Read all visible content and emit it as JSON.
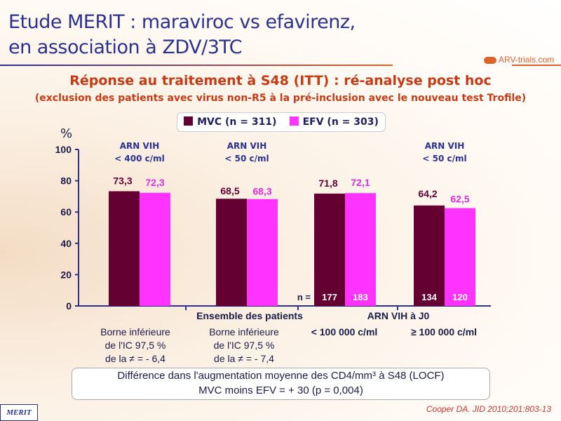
{
  "title_line1": "Etude MERIT : maraviroc vs efavirenz,",
  "title_line2": "en association à ZDV/3TC",
  "logo_text": "ARV-trials.com",
  "subtitle": "Réponse au traitement à S48 (ITT) : ré-analyse post hoc",
  "subtitle2": "(exclusion des patients avec virus non-R5 à la pré-inclusion avec le nouveau test Trofile)",
  "colors": {
    "mvc": "#650033",
    "efv": "#ff33ff"
  },
  "chart_data": {
    "type": "bar",
    "ylabel": "%",
    "ylim": [
      0,
      100
    ],
    "yticks": [
      "0",
      "20",
      "40",
      "60",
      "80",
      "100"
    ],
    "legend": "top-center",
    "categories": [
      "ARN VIH < 400 c/ml",
      "ARN VIH < 50 c/ml",
      "< 100 000 c/ml",
      "≥ 100 000 c/ml"
    ],
    "group_headers": [
      [
        "ARN VIH",
        "< 400 c/ml"
      ],
      [
        "ARN VIH",
        "< 50 c/ml"
      ],
      [
        "",
        ""
      ],
      [
        "ARN VIH",
        "< 50 c/ml"
      ]
    ],
    "series": [
      {
        "name": "MVC (n = 311)",
        "values": [
          73.3,
          68.5,
          71.8,
          64.2
        ],
        "labels": [
          "73,3",
          "68,5",
          "71,8",
          "64,2"
        ],
        "n": [
          "",
          "",
          "177",
          "134"
        ]
      },
      {
        "name": "EFV (n = 303)",
        "values": [
          72.3,
          68.3,
          72.1,
          62.5
        ],
        "labels": [
          "72,3",
          "68,3",
          "72,1",
          "62,5"
        ],
        "n": [
          "",
          "",
          "183",
          "120"
        ]
      }
    ],
    "n_label": "n =",
    "xgroup_labels": [
      "Ensemble des patients",
      "ARN VIH à J0"
    ],
    "strata_labels": [
      "< 100 000 c/ml",
      "≥ 100 000 c/ml"
    ]
  },
  "notes": {
    "ci1": [
      "Borne inférieure",
      "de l'IC 97,5 %",
      "de la ≠ = - 6,4"
    ],
    "ci2": [
      "Borne inférieure",
      "de l'IC 97,5 %",
      "de la ≠ = - 7,4"
    ]
  },
  "cd4_box": {
    "line1": "Différence dans l'augmentation moyenne des CD4/mm³ à S48 (LOCF)",
    "line2": "MVC moins EFV = + 30 (p = 0,004)"
  },
  "citation": "Cooper DA. JID 2010;201:803-13",
  "badge": "MERIT"
}
